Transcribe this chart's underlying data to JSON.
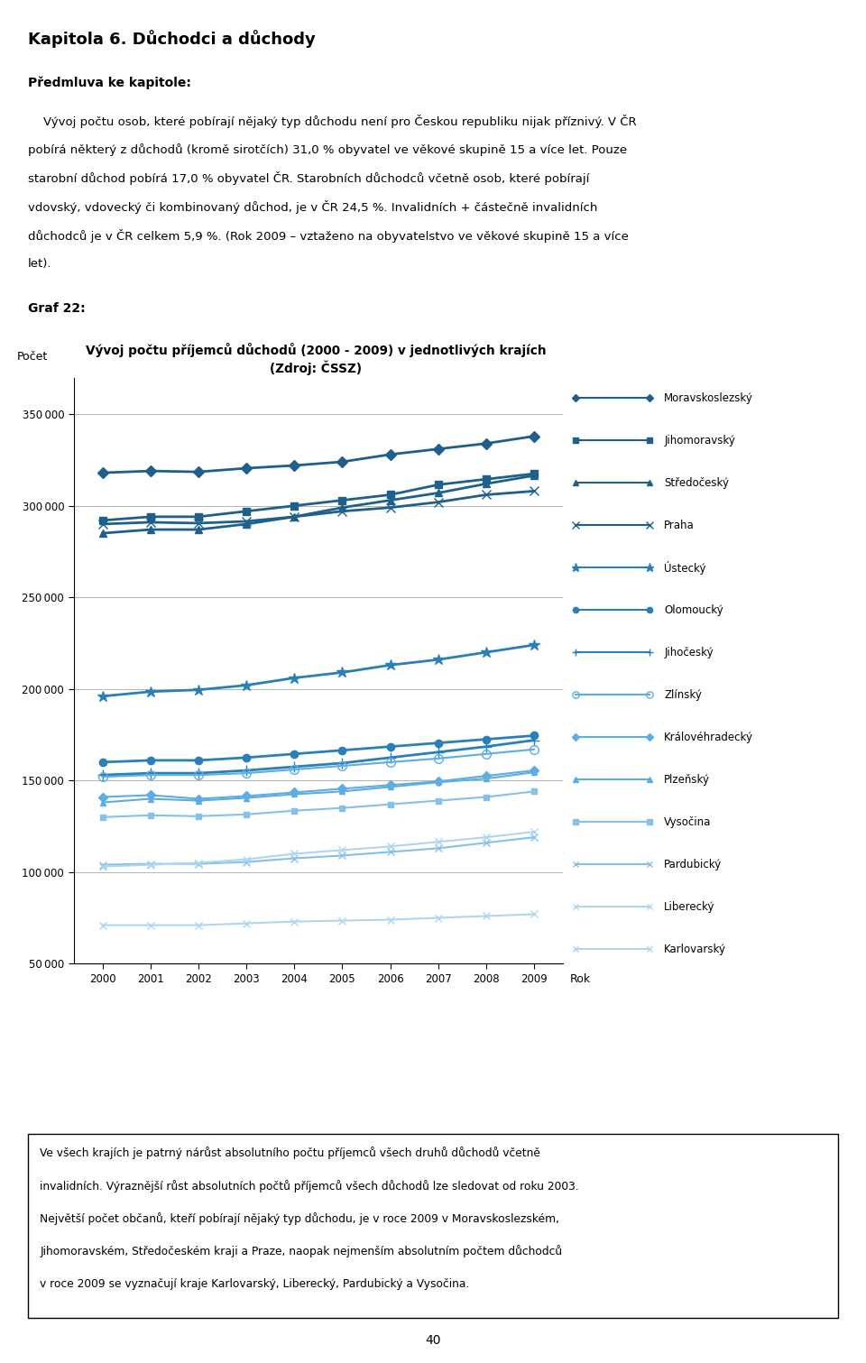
{
  "title_line1": "Vývoj počtu příjemců důchodů (2000 - 2009) v jednotlivých krajích",
  "title_line2": "(Zdroj: ČSSZ)",
  "ylabel": "Počet",
  "xlabel": "Rok",
  "years": [
    2000,
    2001,
    2002,
    2003,
    2004,
    2005,
    2006,
    2007,
    2008,
    2009
  ],
  "series": {
    "Moravskoslezský": [
      318000,
      319000,
      318500,
      320500,
      322000,
      324000,
      328000,
      331000,
      334000,
      338000
    ],
    "Jihomoravský": [
      292000,
      294000,
      294000,
      297000,
      300000,
      303000,
      306000,
      311500,
      314500,
      317500
    ],
    "Středočeský": [
      285000,
      287000,
      287000,
      290000,
      294000,
      299000,
      303000,
      307000,
      312000,
      316500
    ],
    "Praha": [
      290000,
      291000,
      290500,
      291500,
      294000,
      297000,
      299000,
      302000,
      306000,
      308000
    ],
    "Ústecký": [
      196000,
      198500,
      199500,
      202000,
      206000,
      209000,
      213000,
      216000,
      220000,
      224000
    ],
    "Olomoucký": [
      160000,
      161000,
      161000,
      162500,
      164500,
      166500,
      168500,
      170500,
      172500,
      174500
    ],
    "Jihočeský": [
      153000,
      154000,
      154000,
      155500,
      157500,
      159500,
      162500,
      165500,
      168500,
      172000
    ],
    "Zlínský": [
      152000,
      153000,
      153000,
      154000,
      156000,
      158000,
      160000,
      162000,
      164500,
      167000
    ],
    "Královéhradecký": [
      141000,
      142000,
      140000,
      141500,
      143500,
      145500,
      147500,
      149500,
      152500,
      155500
    ],
    "Plzeňský": [
      138000,
      140000,
      139000,
      140500,
      142500,
      144000,
      146500,
      149000,
      151000,
      154500
    ],
    "Vysočina": [
      130000,
      131000,
      130500,
      131500,
      133500,
      135000,
      137000,
      139000,
      141000,
      144000
    ],
    "Pardubický": [
      104000,
      104500,
      104500,
      105500,
      107500,
      109000,
      111000,
      113000,
      116000,
      119000
    ],
    "Liberecký": [
      103000,
      104000,
      105000,
      107000,
      110000,
      112000,
      114000,
      116500,
      119000,
      122000
    ],
    "Karlovarský": [
      71000,
      71000,
      71000,
      72000,
      73000,
      73500,
      74000,
      75000,
      76000,
      77000
    ]
  },
  "series_styles": {
    "Moravskoslezský": {
      "color": "#1f5f8b",
      "marker": "D",
      "markersize": 6,
      "lw": 2.0,
      "mfc_none": false
    },
    "Jihomoravský": {
      "color": "#1f5f8b",
      "marker": "s",
      "markersize": 6,
      "lw": 2.0,
      "mfc_none": false
    },
    "Středočeský": {
      "color": "#1f5f8b",
      "marker": "^",
      "markersize": 6,
      "lw": 2.0,
      "mfc_none": false
    },
    "Praha": {
      "color": "#1f5f8b",
      "marker": "x",
      "markersize": 7,
      "lw": 2.0,
      "mfc_none": false
    },
    "Ústecký": {
      "color": "#2980b9",
      "marker": "*",
      "markersize": 9,
      "lw": 2.0,
      "mfc_none": false
    },
    "Olomoucký": {
      "color": "#2980b9",
      "marker": "o",
      "markersize": 6,
      "lw": 2.0,
      "mfc_none": false
    },
    "Jihočeský": {
      "color": "#2980b9",
      "marker": "+",
      "markersize": 8,
      "lw": 2.0,
      "mfc_none": false
    },
    "Zlínský": {
      "color": "#5dade2",
      "marker": "o",
      "markersize": 7,
      "lw": 1.5,
      "mfc_none": true
    },
    "Královéhradecký": {
      "color": "#5dade2",
      "marker": "D",
      "markersize": 5,
      "lw": 1.5,
      "mfc_none": false
    },
    "Plzeňský": {
      "color": "#5dade2",
      "marker": "^",
      "markersize": 5,
      "lw": 1.5,
      "mfc_none": false
    },
    "Vysočina": {
      "color": "#85c1e9",
      "marker": "s",
      "markersize": 5,
      "lw": 1.5,
      "mfc_none": false
    },
    "Pardubický": {
      "color": "#85c1e9",
      "marker": "x",
      "markersize": 6,
      "lw": 1.5,
      "mfc_none": false
    },
    "Liberecký": {
      "color": "#aed6f1",
      "marker": "x",
      "markersize": 6,
      "lw": 1.5,
      "mfc_none": false
    },
    "Karlovarský": {
      "color": "#aed6f1",
      "marker": "x",
      "markersize": 6,
      "lw": 1.5,
      "mfc_none": false
    }
  },
  "ylim": [
    50000,
    370000
  ],
  "yticks": [
    50000,
    100000,
    150000,
    200000,
    250000,
    300000,
    350000
  ],
  "page_title": "Kapitola 6. Důchodci a důchody",
  "section_title": "Předmluva ke kapitole:",
  "body_text_lines": [
    "    Vývoj počtu osob, které pobírají nějaký typ důchodu není pro Českou republiku nijak příznivý. V ČR",
    "pobírá některý z důchodů (kromě sirotčích) 31,0 % obyvatel ve věkové skupině 15 a více let. Pouze",
    "starobní důchod pobírá 17,0 % obyvatel ČR. Starobních důchodců včetně osob, které pobírají",
    "vdovský, vdovecký či kombinovaný důchod, je v ČR 24,5 %. Invalidních + částečně invalidních",
    "důchodců je v ČR celkem 5,9 %. (Rok 2009 – vztaženo na obyvatelstvo ve věkové skupině 15 a více",
    "let)."
  ],
  "graf_label": "Graf 22:",
  "footnote_lines": [
    "Ve všech krajích je patrný nárůst absolutního počtu příjemců všech druhů důchodů včetně",
    "invalidních. Výraznější růst absolutních počtů příjemců všech důchodů lze sledovat od roku 2003.",
    "Největší počet občanů, kteří pobírají nějaký typ důchodu, je v roce 2009 v Moravskoslezském,",
    "Jihomoravském, Středočeském kraji a Praze, naopak nejmenším absolutním počtem důchodců",
    "v roce 2009 se vyznačují kraje Karlovarský, Liberecký, Pardubický a Vysočina."
  ],
  "page_number": "40"
}
